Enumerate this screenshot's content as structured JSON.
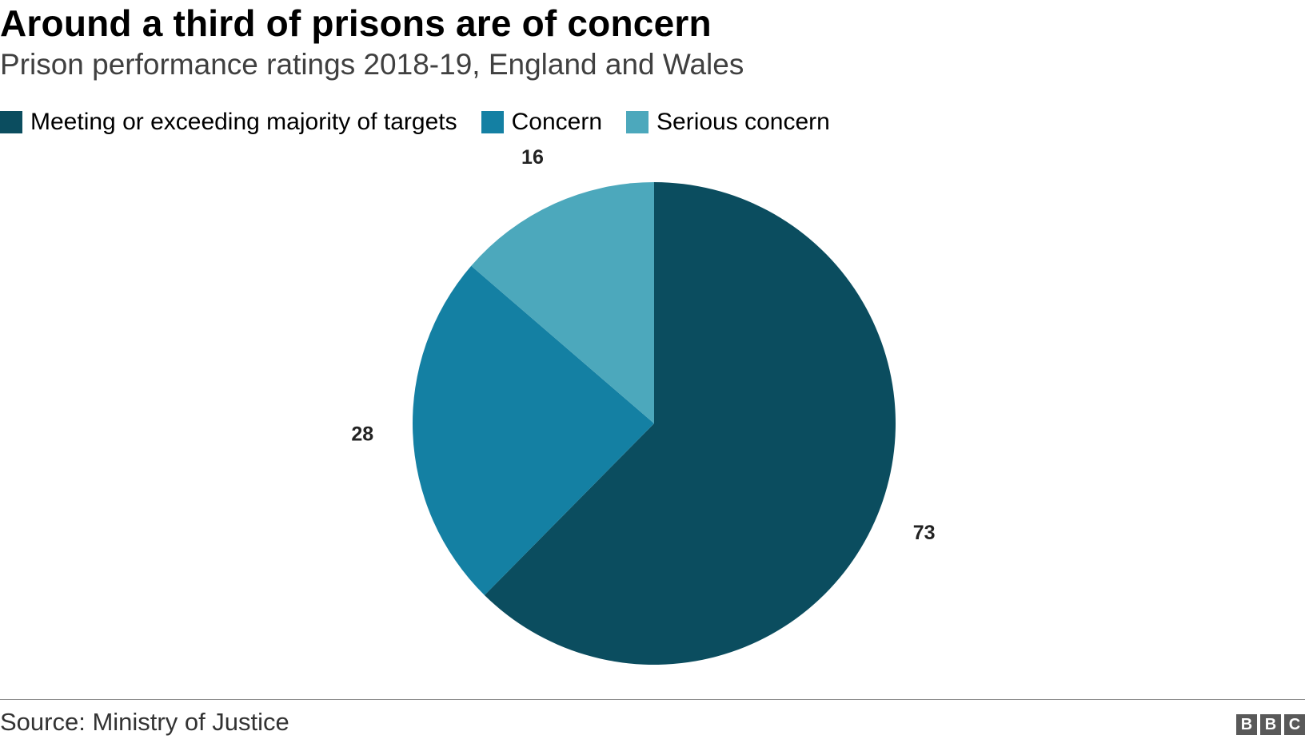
{
  "header": {
    "title": "Around a third of prisons are of concern",
    "subtitle": "Prison performance ratings 2018-19, England and Wales"
  },
  "legend": [
    {
      "label": "Meeting or exceeding majority of targets",
      "color": "#0b4d5f"
    },
    {
      "label": "Concern",
      "color": "#1480a3"
    },
    {
      "label": "Serious concern",
      "color": "#4ca8bc"
    }
  ],
  "chart_data": {
    "type": "pie",
    "categories": [
      "Meeting or exceeding majority of targets",
      "Concern",
      "Serious concern"
    ],
    "values": [
      73,
      28,
      16
    ],
    "colors": [
      "#0b4d5f",
      "#1480a3",
      "#4ca8bc"
    ],
    "title": "Around a third of prisons are of concern",
    "subtitle": "Prison performance ratings 2018-19, England and Wales",
    "legend_position": "top-left",
    "start_angle": "12 o'clock, clockwise"
  },
  "footer": {
    "source": "Source: Ministry of Justice",
    "logo": [
      "B",
      "B",
      "C"
    ]
  }
}
